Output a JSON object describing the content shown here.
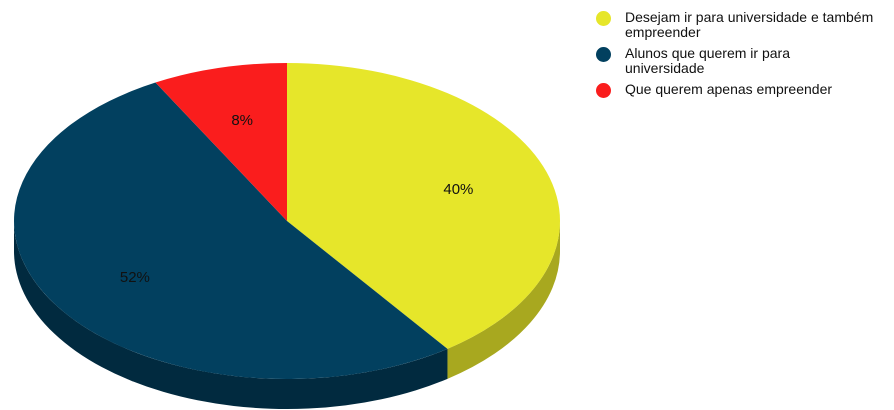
{
  "chart_data": {
    "type": "pie",
    "title": "",
    "categories": [
      "Desejam ir para universidade e também empreender",
      "Alunos que querem ir para universidade",
      "Que querem apenas empreender"
    ],
    "values": [
      40,
      52,
      8
    ],
    "value_labels": [
      "40%",
      "52%",
      "8%"
    ],
    "colors": [
      "#e6e62a",
      "#02405f",
      "#fa1d1d"
    ],
    "side_colors": [
      "#a8a81f",
      "#012a3f",
      "#b31414"
    ],
    "legend": "top-right",
    "style": "3d"
  }
}
